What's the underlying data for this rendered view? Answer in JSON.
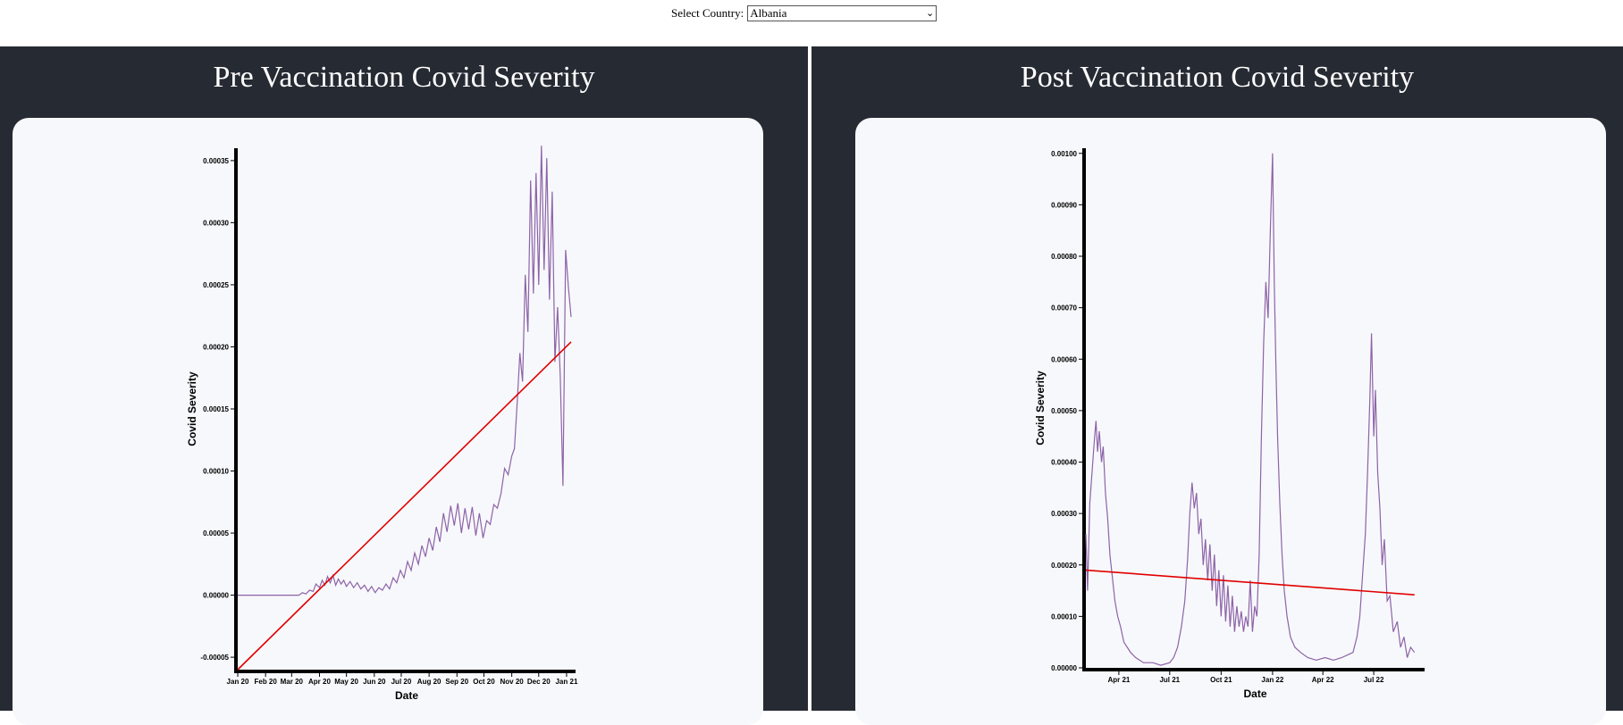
{
  "header": {
    "select_label": "Select Country:",
    "selected_country": "Albania"
  },
  "panels": {
    "pre_title": "Pre Vaccination Covid Severity",
    "post_title": "Post Vaccination Covid Severity"
  },
  "colors": {
    "panel_bg": "#262a33",
    "card_bg": "#f7f8fb",
    "series": "#8d63a8",
    "trend": "#e10000"
  },
  "chart_data": [
    {
      "type": "line",
      "title": "Pre Vaccination Covid Severity",
      "xlabel": "Date",
      "ylabel": "Covid Severity",
      "xlim": [
        "2020-01-01",
        "2021-01-11"
      ],
      "ylim": [
        -6e-05,
        0.00036
      ],
      "x_ticks": [
        "Jan 20",
        "Feb 20",
        "Mar 20",
        "Apr 20",
        "May 20",
        "Jun 20",
        "Jul 20",
        "Aug 20",
        "Sep 20",
        "Oct 20",
        "Nov 20",
        "Dec 20",
        "Jan 21"
      ],
      "y_ticks": [
        "-0.00005",
        "0.00000",
        "0.00005",
        "0.00010",
        "0.00015",
        "0.00020",
        "0.00025",
        "0.00030",
        "0.00035"
      ],
      "series": [
        {
          "values": [
            [
              "2020-01-01",
              0
            ],
            [
              "2020-03-01",
              0
            ],
            [
              "2020-03-09",
              0
            ],
            [
              "2020-03-13",
              2e-06
            ],
            [
              "2020-03-17",
              1e-06
            ],
            [
              "2020-03-21",
              4e-06
            ],
            [
              "2020-03-25",
              3e-06
            ],
            [
              "2020-03-28",
              9e-06
            ],
            [
              "2020-04-01",
              6e-06
            ],
            [
              "2020-04-04",
              1.2e-05
            ],
            [
              "2020-04-07",
              8e-06
            ],
            [
              "2020-04-10",
              1.5e-05
            ],
            [
              "2020-04-13",
              1e-05
            ],
            [
              "2020-04-16",
              1.6e-05
            ],
            [
              "2020-04-19",
              8e-06
            ],
            [
              "2020-04-22",
              1.3e-05
            ],
            [
              "2020-04-25",
              9e-06
            ],
            [
              "2020-04-28",
              1.2e-05
            ],
            [
              "2020-05-01",
              7e-06
            ],
            [
              "2020-05-05",
              1.1e-05
            ],
            [
              "2020-05-09",
              6e-06
            ],
            [
              "2020-05-13",
              1e-05
            ],
            [
              "2020-05-17",
              5e-06
            ],
            [
              "2020-05-21",
              8e-06
            ],
            [
              "2020-05-25",
              3e-06
            ],
            [
              "2020-05-29",
              7e-06
            ],
            [
              "2020-06-02",
              2e-06
            ],
            [
              "2020-06-06",
              6e-06
            ],
            [
              "2020-06-10",
              4e-06
            ],
            [
              "2020-06-14",
              9e-06
            ],
            [
              "2020-06-18",
              5e-06
            ],
            [
              "2020-06-22",
              1.4e-05
            ],
            [
              "2020-06-26",
              1e-05
            ],
            [
              "2020-06-30",
              2e-05
            ],
            [
              "2020-07-04",
              1.4e-05
            ],
            [
              "2020-07-08",
              2.7e-05
            ],
            [
              "2020-07-12",
              2e-05
            ],
            [
              "2020-07-16",
              3.4e-05
            ],
            [
              "2020-07-20",
              2.5e-05
            ],
            [
              "2020-07-24",
              4e-05
            ],
            [
              "2020-07-28",
              3.1e-05
            ],
            [
              "2020-08-01",
              4.6e-05
            ],
            [
              "2020-08-05",
              3.6e-05
            ],
            [
              "2020-08-09",
              5.5e-05
            ],
            [
              "2020-08-13",
              4.3e-05
            ],
            [
              "2020-08-17",
              6.6e-05
            ],
            [
              "2020-08-21",
              5.1e-05
            ],
            [
              "2020-08-25",
              7.2e-05
            ],
            [
              "2020-08-29",
              5.6e-05
            ],
            [
              "2020-09-02",
              7.4e-05
            ],
            [
              "2020-09-06",
              5e-05
            ],
            [
              "2020-09-10",
              7e-05
            ],
            [
              "2020-09-14",
              5.3e-05
            ],
            [
              "2020-09-18",
              7.1e-05
            ],
            [
              "2020-09-22",
              4.8e-05
            ],
            [
              "2020-09-26",
              6.6e-05
            ],
            [
              "2020-09-30",
              4.6e-05
            ],
            [
              "2020-10-04",
              6e-05
            ],
            [
              "2020-10-08",
              5.7e-05
            ],
            [
              "2020-10-12",
              7.3e-05
            ],
            [
              "2020-10-16",
              7e-05
            ],
            [
              "2020-10-20",
              8.2e-05
            ],
            [
              "2020-10-24",
              0.000102
            ],
            [
              "2020-10-28",
              9.7e-05
            ],
            [
              "2020-11-01",
              0.000112
            ],
            [
              "2020-11-04",
              0.000118
            ],
            [
              "2020-11-07",
              0.000155
            ],
            [
              "2020-11-10",
              0.000195
            ],
            [
              "2020-11-13",
              0.000172
            ],
            [
              "2020-11-16",
              0.000258
            ],
            [
              "2020-11-19",
              0.000212
            ],
            [
              "2020-11-22",
              0.000334
            ],
            [
              "2020-11-25",
              0.000243
            ],
            [
              "2020-11-28",
              0.00034
            ],
            [
              "2020-12-01",
              0.00025
            ],
            [
              "2020-12-04",
              0.000362
            ],
            [
              "2020-12-07",
              0.000262
            ],
            [
              "2020-12-10",
              0.000352
            ],
            [
              "2020-12-13",
              0.000238
            ],
            [
              "2020-12-16",
              0.000325
            ],
            [
              "2020-12-19",
              0.000188
            ],
            [
              "2020-12-22",
              0.000232
            ],
            [
              "2020-12-25",
              0.000176
            ],
            [
              "2020-12-28",
              8.8e-05
            ],
            [
              "2020-12-31",
              0.000278
            ],
            [
              "2021-01-03",
              0.000248
            ],
            [
              "2021-01-06",
              0.000224
            ]
          ]
        },
        {
          "values": [
            [
              "2020-01-01",
              -6e-05
            ],
            [
              "2021-01-06",
              0.000204
            ]
          ]
        }
      ]
    },
    {
      "type": "line",
      "title": "Post Vaccination Covid Severity",
      "xlabel": "Date",
      "ylabel": "Covid Severity",
      "xlim": [
        "2021-02-01",
        "2022-09-30"
      ],
      "ylim": [
        0,
        0.00101
      ],
      "x_ticks": [
        "Apr 21",
        "Jul 21",
        "Oct 21",
        "Jan 22",
        "Apr 22",
        "Jul 22"
      ],
      "y_ticks": [
        "0.00000",
        "0.00010",
        "0.00020",
        "0.00030",
        "0.00040",
        "0.00050",
        "0.00060",
        "0.00070",
        "0.00080",
        "0.00090",
        "0.00100"
      ],
      "series": [
        {
          "values": [
            [
              "2021-02-01",
              0.00026
            ],
            [
              "2021-02-04",
              0.00015
            ],
            [
              "2021-02-08",
              0.00032
            ],
            [
              "2021-02-12",
              0.00038
            ],
            [
              "2021-02-16",
              0.00044
            ],
            [
              "2021-02-19",
              0.00048
            ],
            [
              "2021-02-22",
              0.00042
            ],
            [
              "2021-02-25",
              0.00046
            ],
            [
              "2021-03-01",
              0.0004
            ],
            [
              "2021-03-04",
              0.00043
            ],
            [
              "2021-03-08",
              0.00034
            ],
            [
              "2021-03-12",
              0.00029
            ],
            [
              "2021-03-16",
              0.00022
            ],
            [
              "2021-03-20",
              0.00018
            ],
            [
              "2021-03-25",
              0.00013
            ],
            [
              "2021-03-30",
              0.0001
            ],
            [
              "2021-04-04",
              8e-05
            ],
            [
              "2021-04-10",
              5e-05
            ],
            [
              "2021-04-16",
              4e-05
            ],
            [
              "2021-04-22",
              3e-05
            ],
            [
              "2021-05-01",
              2e-05
            ],
            [
              "2021-05-15",
              1e-05
            ],
            [
              "2021-06-01",
              1e-05
            ],
            [
              "2021-06-15",
              5e-06
            ],
            [
              "2021-07-01",
              1e-05
            ],
            [
              "2021-07-08",
              2e-05
            ],
            [
              "2021-07-15",
              4e-05
            ],
            [
              "2021-07-22",
              8e-05
            ],
            [
              "2021-07-28",
              0.00013
            ],
            [
              "2021-08-02",
              0.00021
            ],
            [
              "2021-08-06",
              0.0003
            ],
            [
              "2021-08-10",
              0.00036
            ],
            [
              "2021-08-14",
              0.00031
            ],
            [
              "2021-08-18",
              0.00034
            ],
            [
              "2021-08-22",
              0.00026
            ],
            [
              "2021-08-26",
              0.00029
            ],
            [
              "2021-08-30",
              0.0002
            ],
            [
              "2021-09-03",
              0.00025
            ],
            [
              "2021-09-07",
              0.00017
            ],
            [
              "2021-09-11",
              0.00024
            ],
            [
              "2021-09-15",
              0.00015
            ],
            [
              "2021-09-19",
              0.00022
            ],
            [
              "2021-09-23",
              0.00012
            ],
            [
              "2021-09-27",
              0.00019
            ],
            [
              "2021-10-01",
              0.0001
            ],
            [
              "2021-10-05",
              0.00018
            ],
            [
              "2021-10-09",
              9e-05
            ],
            [
              "2021-10-13",
              0.00016
            ],
            [
              "2021-10-17",
              8e-05
            ],
            [
              "2021-10-21",
              0.00014
            ],
            [
              "2021-10-25",
              7e-05
            ],
            [
              "2021-10-29",
              0.00012
            ],
            [
              "2021-11-02",
              8e-05
            ],
            [
              "2021-11-06",
              0.00011
            ],
            [
              "2021-11-10",
              7e-05
            ],
            [
              "2021-11-14",
              0.0001
            ],
            [
              "2021-11-18",
              8e-05
            ],
            [
              "2021-11-22",
              0.00017
            ],
            [
              "2021-11-26",
              7e-05
            ],
            [
              "2021-11-30",
              0.00012
            ],
            [
              "2021-12-04",
              0.0001
            ],
            [
              "2021-12-08",
              0.00022
            ],
            [
              "2021-12-12",
              0.00045
            ],
            [
              "2021-12-16",
              0.00063
            ],
            [
              "2021-12-20",
              0.00075
            ],
            [
              "2021-12-24",
              0.00068
            ],
            [
              "2021-12-28",
              0.00085
            ],
            [
              "2022-01-01",
              0.001
            ],
            [
              "2022-01-04",
              0.00075
            ],
            [
              "2022-01-07",
              0.00059
            ],
            [
              "2022-01-10",
              0.00045
            ],
            [
              "2022-01-14",
              0.00032
            ],
            [
              "2022-01-18",
              0.00022
            ],
            [
              "2022-01-22",
              0.00015
            ],
            [
              "2022-01-27",
              0.0001
            ],
            [
              "2022-02-02",
              6e-05
            ],
            [
              "2022-02-10",
              4e-05
            ],
            [
              "2022-02-20",
              3e-05
            ],
            [
              "2022-03-05",
              2e-05
            ],
            [
              "2022-03-20",
              1.5e-05
            ],
            [
              "2022-04-05",
              2e-05
            ],
            [
              "2022-04-20",
              1.5e-05
            ],
            [
              "2022-05-05",
              2e-05
            ],
            [
              "2022-05-15",
              2.5e-05
            ],
            [
              "2022-05-25",
              3e-05
            ],
            [
              "2022-06-01",
              6e-05
            ],
            [
              "2022-06-06",
              0.0001
            ],
            [
              "2022-06-11",
              0.00018
            ],
            [
              "2022-06-16",
              0.00026
            ],
            [
              "2022-06-20",
              0.00038
            ],
            [
              "2022-06-24",
              0.00052
            ],
            [
              "2022-06-27",
              0.00065
            ],
            [
              "2022-07-01",
              0.00045
            ],
            [
              "2022-07-04",
              0.00054
            ],
            [
              "2022-07-08",
              0.00038
            ],
            [
              "2022-07-12",
              0.00031
            ],
            [
              "2022-07-16",
              0.0002
            ],
            [
              "2022-07-20",
              0.00025
            ],
            [
              "2022-07-25",
              0.00013
            ],
            [
              "2022-07-30",
              0.00014
            ],
            [
              "2022-08-05",
              7e-05
            ],
            [
              "2022-08-12",
              9e-05
            ],
            [
              "2022-08-18",
              4e-05
            ],
            [
              "2022-08-24",
              6e-05
            ],
            [
              "2022-08-30",
              2e-05
            ],
            [
              "2022-09-05",
              4e-05
            ],
            [
              "2022-09-12",
              3e-05
            ]
          ]
        },
        {
          "values": [
            [
              "2021-02-01",
              0.00019
            ],
            [
              "2022-09-12",
              0.000142
            ]
          ]
        }
      ]
    }
  ]
}
